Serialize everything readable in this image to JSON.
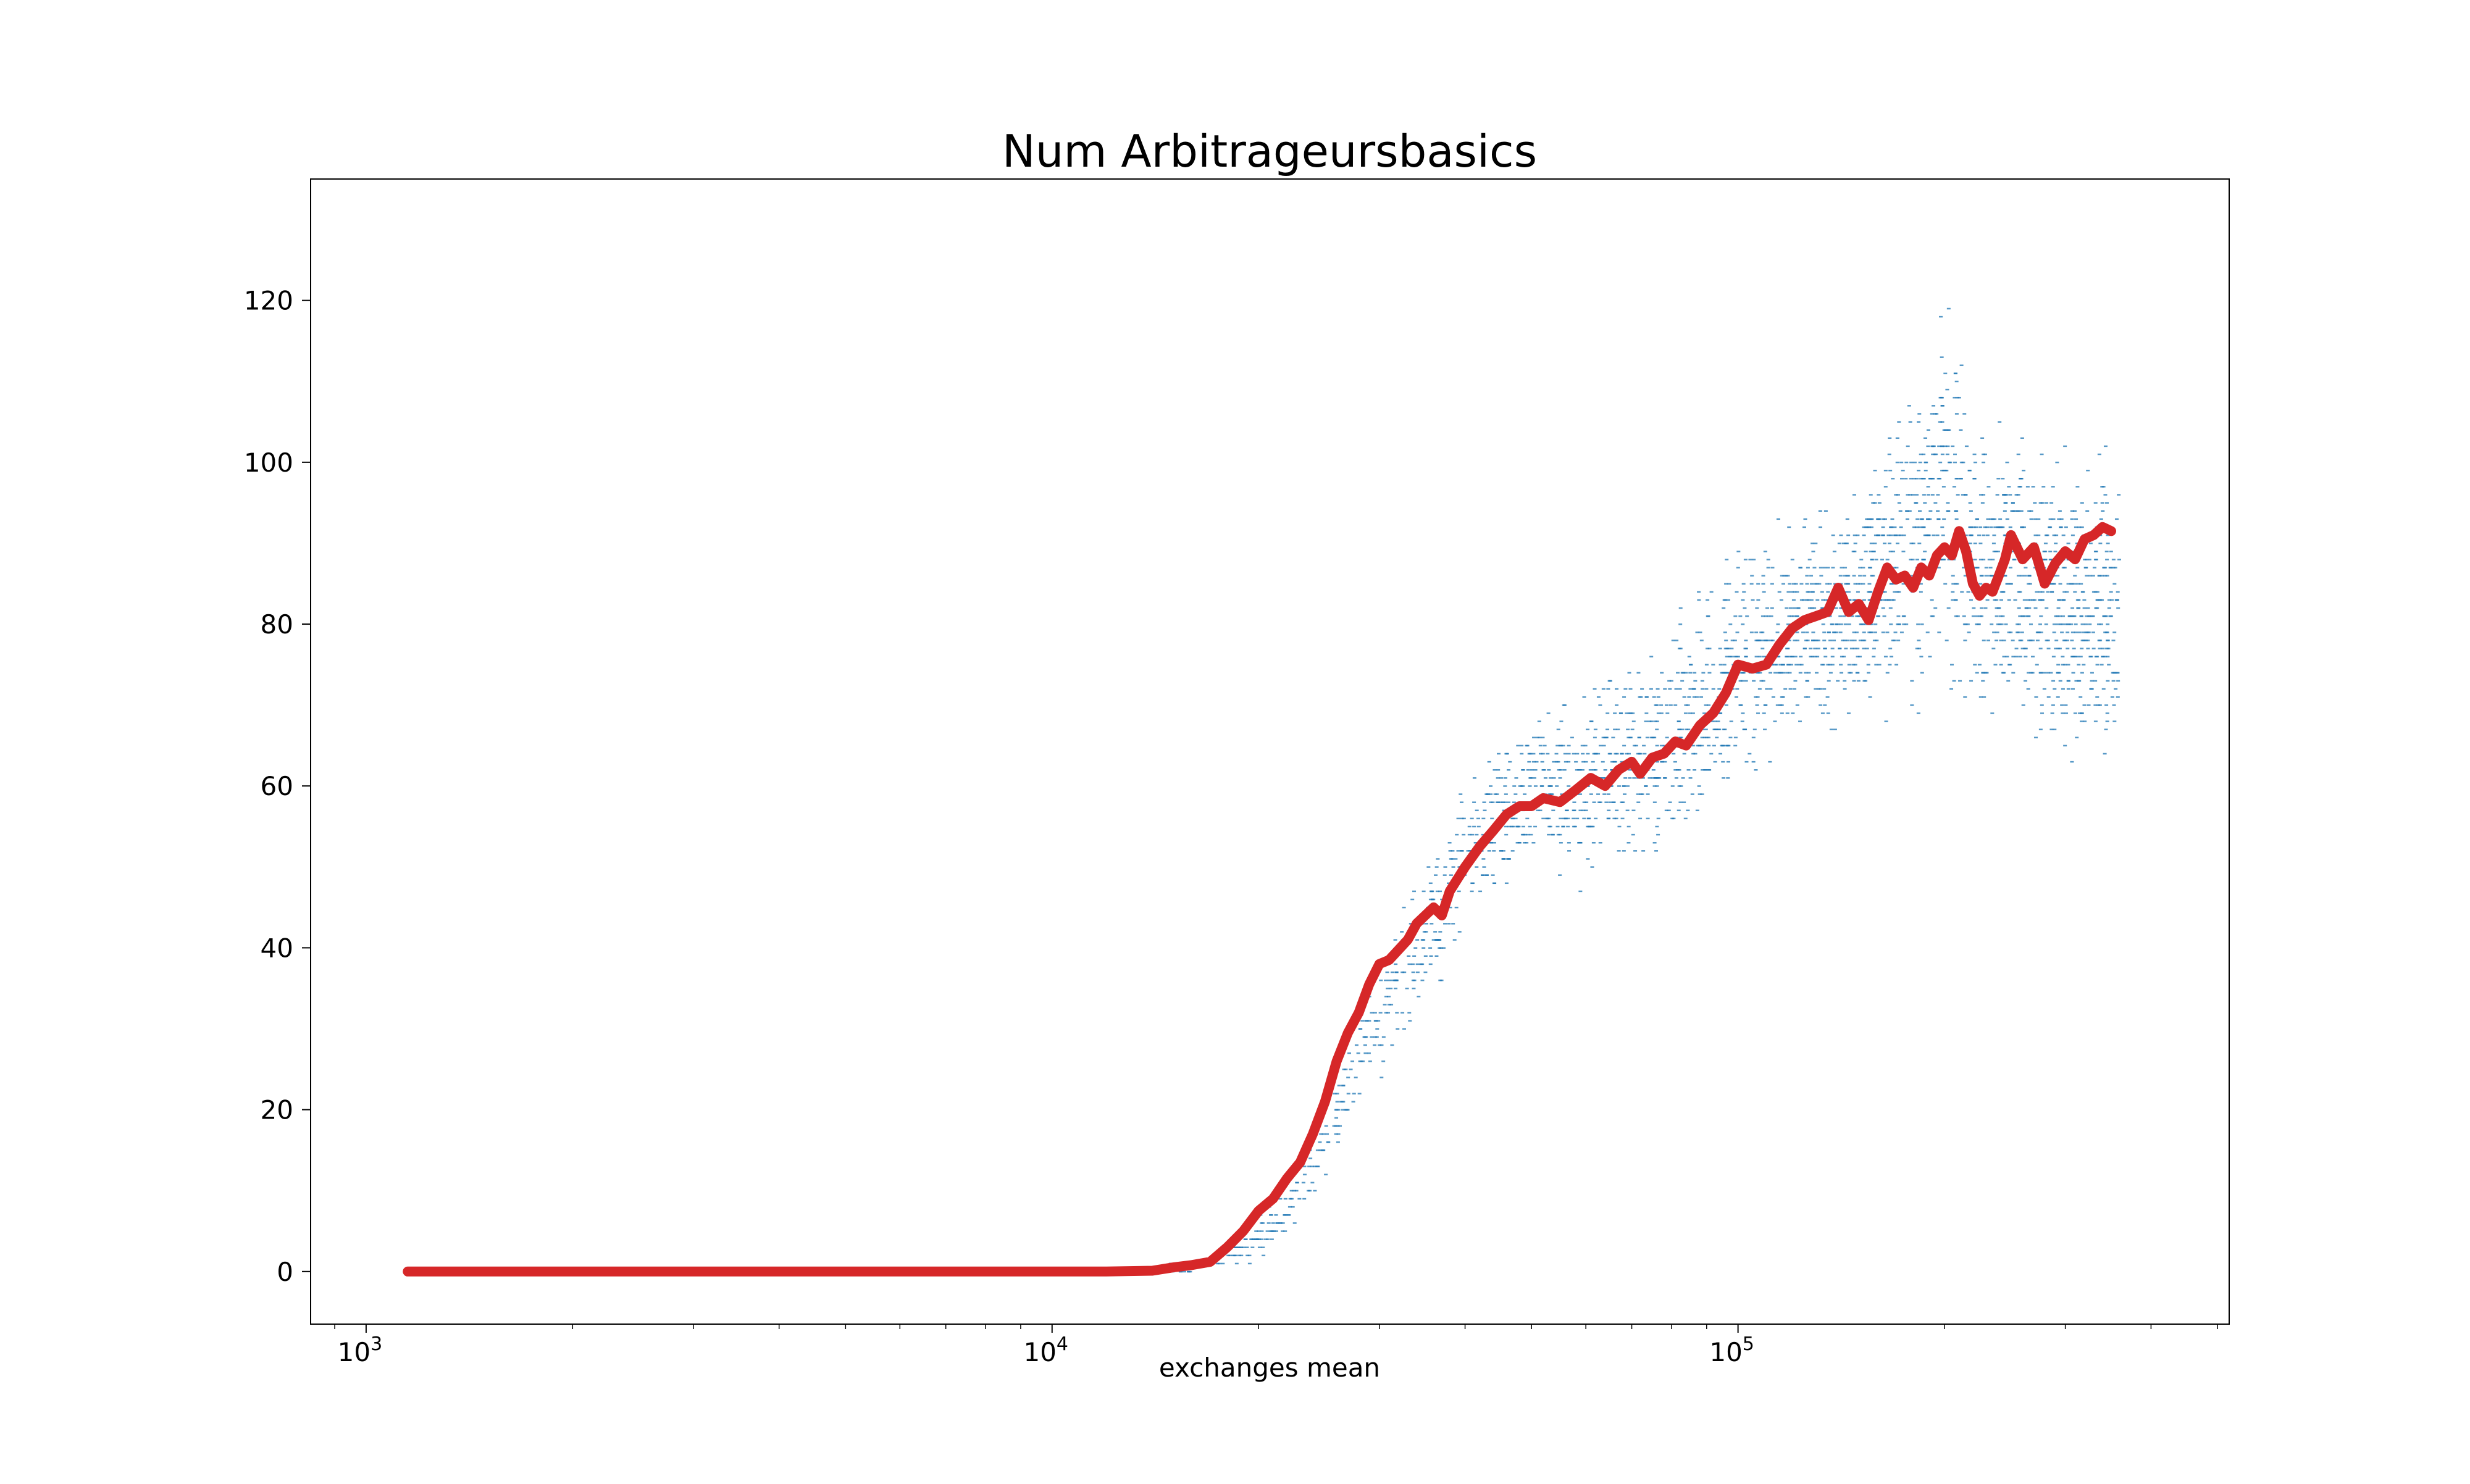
{
  "chart_data": {
    "type": "scatter",
    "title": "Num Arbitrageursbasics",
    "xlabel": "exchanges mean",
    "ylabel": "",
    "x_scale": "log",
    "xlim": [
      830,
      520000
    ],
    "ylim": [
      -6.5,
      135
    ],
    "x_ticks": [
      {
        "value": 1000,
        "base": "10",
        "exp": "3"
      },
      {
        "value": 10000,
        "base": "10",
        "exp": "4"
      },
      {
        "value": 100000,
        "base": "10",
        "exp": "5"
      }
    ],
    "y_ticks": [
      0,
      20,
      40,
      60,
      80,
      100,
      120
    ],
    "grid": false,
    "series": [
      {
        "kind": "scatter",
        "color": "#1f77b4",
        "marker": "small dots",
        "points_x_start": 13000,
        "points_x_end": 360000,
        "band_x": [
          13000,
          15000,
          17000,
          19000,
          21000,
          23000,
          25000,
          27000,
          30000,
          33000,
          36000,
          40000,
          45000,
          50000,
          55000,
          60000,
          70000,
          80000,
          90000,
          100000,
          120000,
          140000,
          160000,
          180000,
          200000,
          220000,
          250000,
          280000,
          320000,
          360000
        ],
        "band_lower": [
          0,
          0,
          0,
          0,
          1,
          4,
          8,
          15,
          21,
          28,
          31,
          40,
          44,
          47,
          46,
          44,
          48,
          47,
          50,
          55,
          62,
          65,
          66,
          65,
          66,
          63,
          66,
          62,
          55,
          58
        ],
        "band_upper": [
          0,
          1,
          2,
          6,
          10,
          16,
          22,
          32,
          40,
          49,
          55,
          64,
          67,
          73,
          74,
          75,
          79,
          82,
          90,
          95,
          95,
          97,
          104,
          115,
          129,
          111,
          110,
          105,
          108,
          105
        ]
      },
      {
        "kind": "line",
        "color": "#d62728",
        "x": [
          1150,
          2000,
          4000,
          8000,
          12000,
          14000,
          15000,
          16000,
          17000,
          18000,
          19000,
          20000,
          21000,
          22000,
          23000,
          24000,
          25000,
          26000,
          27000,
          28000,
          29000,
          30000,
          31000,
          33000,
          34000,
          36000,
          37000,
          38000,
          40000,
          42000,
          44000,
          46000,
          48000,
          50000,
          52000,
          55000,
          58000,
          61000,
          64000,
          67000,
          70000,
          72000,
          75000,
          78000,
          81000,
          84000,
          88000,
          92000,
          96000,
          100000,
          105000,
          110000,
          115000,
          120000,
          125000,
          130000,
          135000,
          140000,
          145000,
          150000,
          155000,
          160000,
          165000,
          170000,
          175000,
          180000,
          185000,
          190000,
          195000,
          200000,
          205000,
          210000,
          215000,
          220000,
          225000,
          230000,
          235000,
          240000,
          245000,
          250000,
          260000,
          270000,
          280000,
          290000,
          300000,
          310000,
          320000,
          330000,
          340000,
          350000
        ],
        "y": [
          0,
          0,
          0,
          0,
          0,
          0.1,
          0.5,
          0.8,
          1.2,
          3,
          5,
          7.5,
          9,
          11.5,
          13.5,
          17,
          21,
          26,
          29.5,
          32,
          35.5,
          38,
          38.5,
          41,
          43,
          45,
          44,
          47,
          50,
          52.5,
          54.5,
          56.5,
          57.5,
          57.5,
          58.5,
          58,
          59.5,
          61,
          60,
          62,
          63,
          61.5,
          63.5,
          64,
          65.5,
          65,
          67.5,
          69,
          71.5,
          75,
          74.5,
          75,
          77.5,
          79.5,
          80.5,
          81,
          81.5,
          84.5,
          81.5,
          82.5,
          80.5,
          84,
          87,
          85.5,
          86,
          84.5,
          87,
          86,
          88.5,
          89.5,
          88.5,
          91.5,
          89,
          85,
          83.5,
          84.5,
          84,
          86,
          88,
          91,
          88,
          89.5,
          85,
          87.5,
          89,
          88,
          90.5,
          91,
          92,
          91.5
        ]
      }
    ]
  }
}
